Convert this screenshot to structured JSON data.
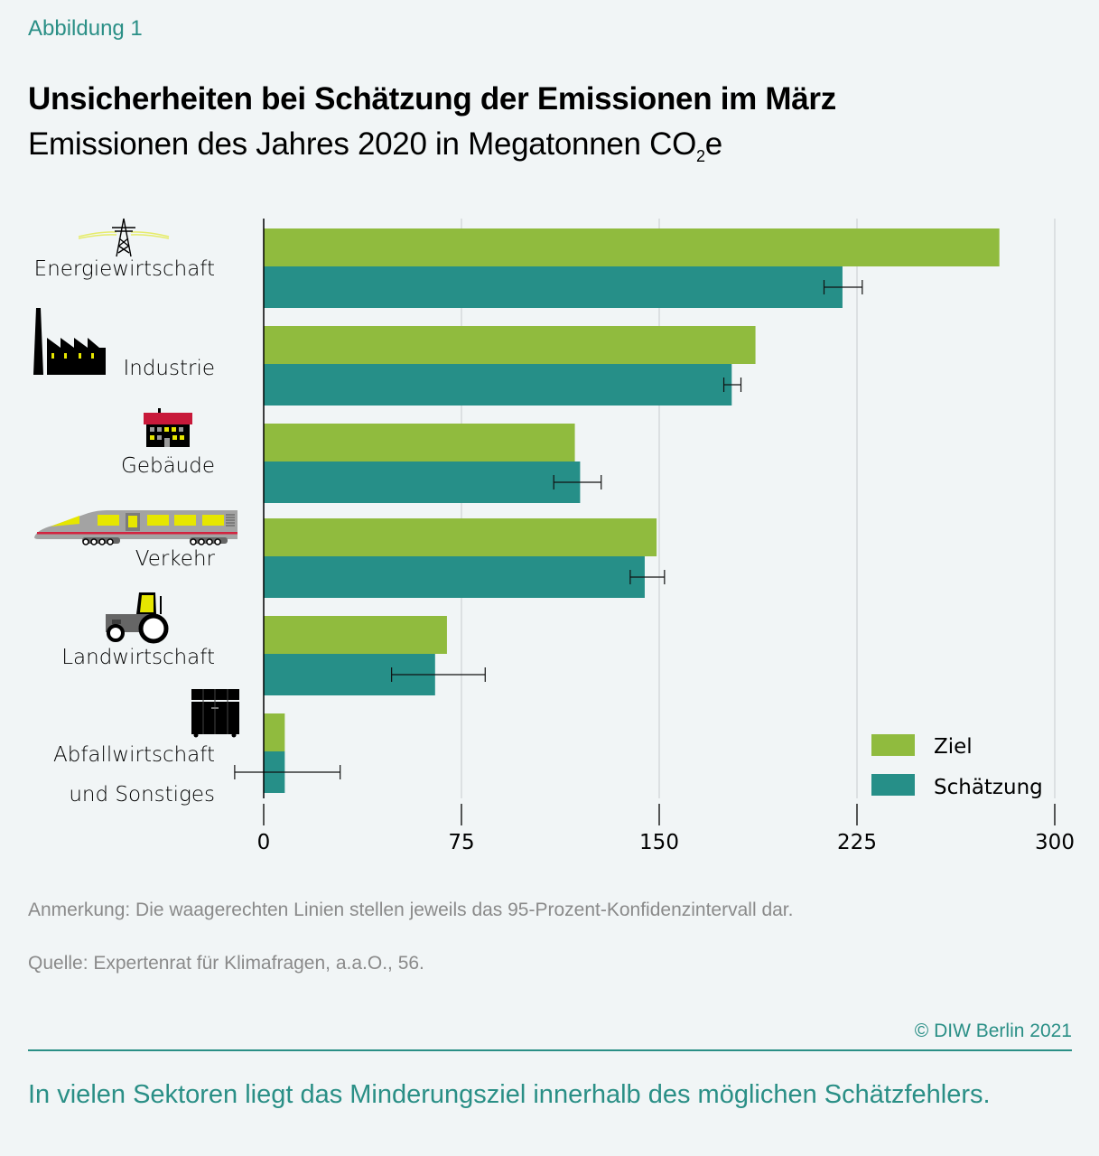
{
  "header": {
    "figure_label": "Abbildung 1",
    "title": "Unsicherheiten bei Schätzung der Emissionen im März",
    "subtitle_main": "Emissionen des Jahres 2020 in Megatonnen CO",
    "subtitle_sub": "2",
    "subtitle_end": "e"
  },
  "colors": {
    "ziel": "#90bb3e",
    "schaetzung": "#268f88",
    "accent": "#2a8f86",
    "grid": "#c8cccd",
    "note": "#8a8a8a"
  },
  "chart_data": {
    "type": "bar",
    "orientation": "horizontal",
    "title": "Unsicherheiten bei Schätzung der Emissionen im März",
    "subtitle": "Emissionen des Jahres 2020 in Megatonnen CO2e",
    "xlabel": "",
    "ylabel": "",
    "xlim": [
      0,
      300
    ],
    "xticks": [
      0,
      75,
      150,
      225,
      300
    ],
    "grid": true,
    "legend_position": "bottom-right",
    "categories": [
      {
        "label": [
          "Energiewirtschaft"
        ],
        "icon": "power-pylon-icon"
      },
      {
        "label": [
          "Industrie"
        ],
        "icon": "factory-icon"
      },
      {
        "label": [
          "Gebäude"
        ],
        "icon": "building-icon"
      },
      {
        "label": [
          "Verkehr"
        ],
        "icon": "train-icon"
      },
      {
        "label": [
          "Landwirtschaft"
        ],
        "icon": "tractor-icon"
      },
      {
        "label": [
          "Abfallwirtschaft",
          "und Sonstiges"
        ],
        "icon": "waste-container-icon"
      }
    ],
    "series": [
      {
        "name": "Ziel",
        "values": [
          279,
          186.5,
          118,
          149,
          69.5,
          8
        ]
      },
      {
        "name": "Schätzung",
        "values": [
          219.5,
          177.5,
          120,
          144.5,
          65,
          8
        ],
        "ci95": [
          [
            212.5,
            227
          ],
          [
            174.5,
            181
          ],
          [
            110,
            128
          ],
          [
            139,
            152
          ],
          [
            48.5,
            84
          ],
          [
            -11,
            29
          ]
        ]
      }
    ]
  },
  "notes": {
    "anmerkung": "Anmerkung: Die waagerechten Linien stellen jeweils das 95-Prozent-Konfidenzintervall dar.",
    "quelle": "Quelle: Expertenrat für Klimafragen, a.a.O., 56."
  },
  "copyright": "© DIW Berlin 2021",
  "footer": "In vielen Sektoren liegt das Minderungsziel innerhalb des möglichen Schätzfehlers."
}
